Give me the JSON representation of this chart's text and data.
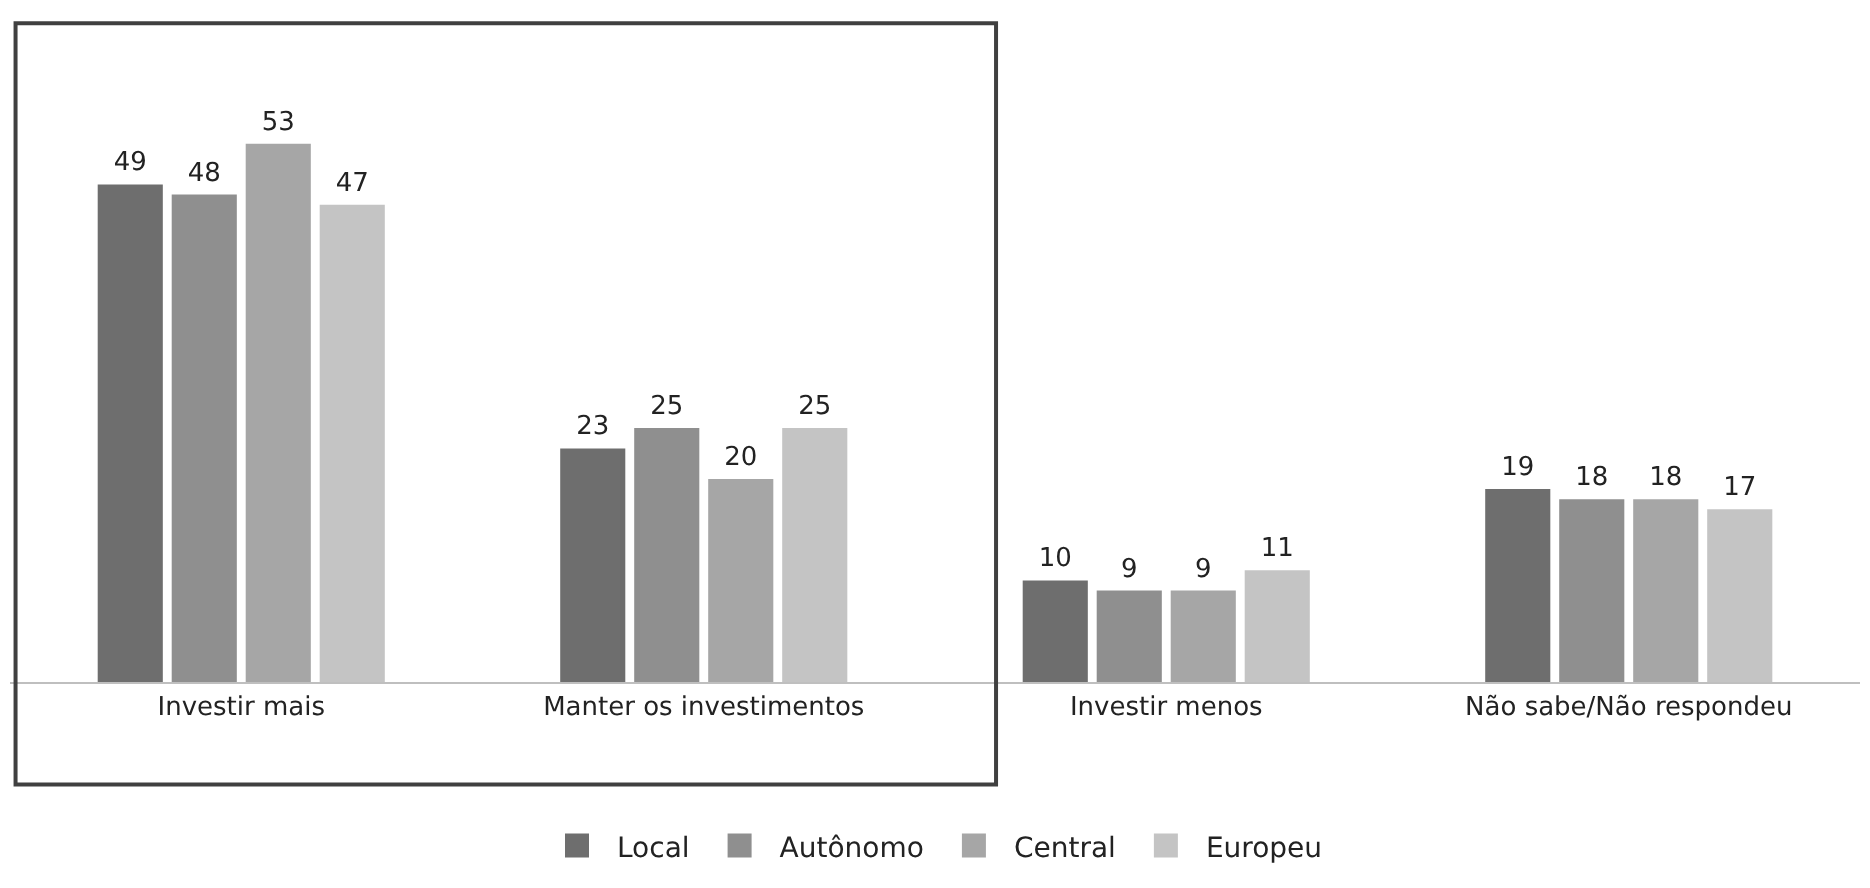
{
  "chart_data": {
    "type": "bar",
    "categories": [
      "Investir mais",
      "Manter os investimentos",
      "Investir menos",
      "Não sabe/Não respondeu"
    ],
    "series": [
      {
        "name": "Local",
        "color": "#6e6e6e",
        "values": [
          49,
          23,
          10,
          19
        ]
      },
      {
        "name": "Autônomo",
        "color": "#8f8f8f",
        "values": [
          48,
          25,
          9,
          18
        ]
      },
      {
        "name": "Central",
        "color": "#a6a6a6",
        "values": [
          53,
          20,
          9,
          18
        ]
      },
      {
        "name": "Europeu",
        "color": "#c4c4c4",
        "values": [
          47,
          25,
          11,
          17
        ]
      }
    ],
    "data_labels": true,
    "legend": "bottom"
  }
}
